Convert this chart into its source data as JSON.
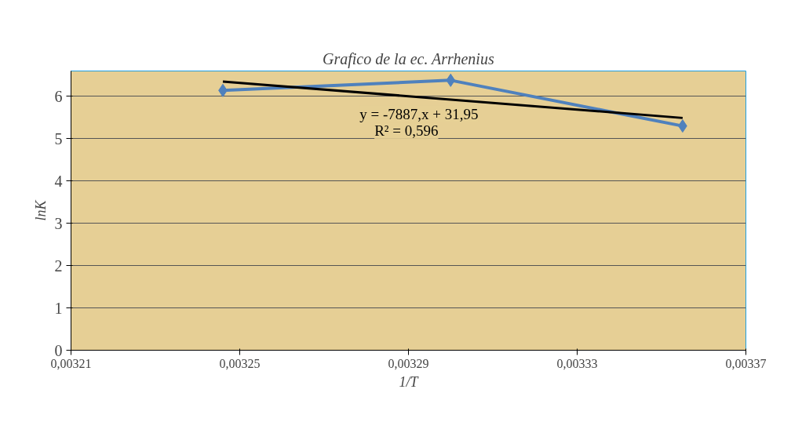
{
  "chart_data": {
    "type": "line",
    "title": "Grafico de la ec. Arrhenius",
    "xlabel": "1/T",
    "ylabel": "lnK",
    "x": [
      0.003246,
      0.0033,
      0.003355
    ],
    "series": [
      {
        "color": "#4f81bd",
        "values": [
          6.14,
          6.38,
          5.3
        ],
        "marker": "diamond"
      },
      {
        "type": "line",
        "color": "#000000",
        "x": [
          0.003246,
          0.003355
        ],
        "values": [
          6.35,
          5.49
        ],
        "marker": "none"
      }
    ],
    "annotations": [
      "y = -7887,x + 31,95",
      "R² = 0,596"
    ],
    "xlim": [
      0.00321,
      0.00337
    ],
    "xticks": [
      {
        "value": 0.00321,
        "label": "0,00321"
      },
      {
        "value": 0.00325,
        "label": "0,00325"
      },
      {
        "value": 0.00329,
        "label": "0,00329"
      },
      {
        "value": 0.00333,
        "label": "0,00333"
      },
      {
        "value": 0.00337,
        "label": "0,00337"
      }
    ],
    "ylim": [
      0,
      6.6
    ],
    "yticks": [
      0,
      1,
      2,
      3,
      4,
      5,
      6
    ],
    "grid": "y"
  }
}
